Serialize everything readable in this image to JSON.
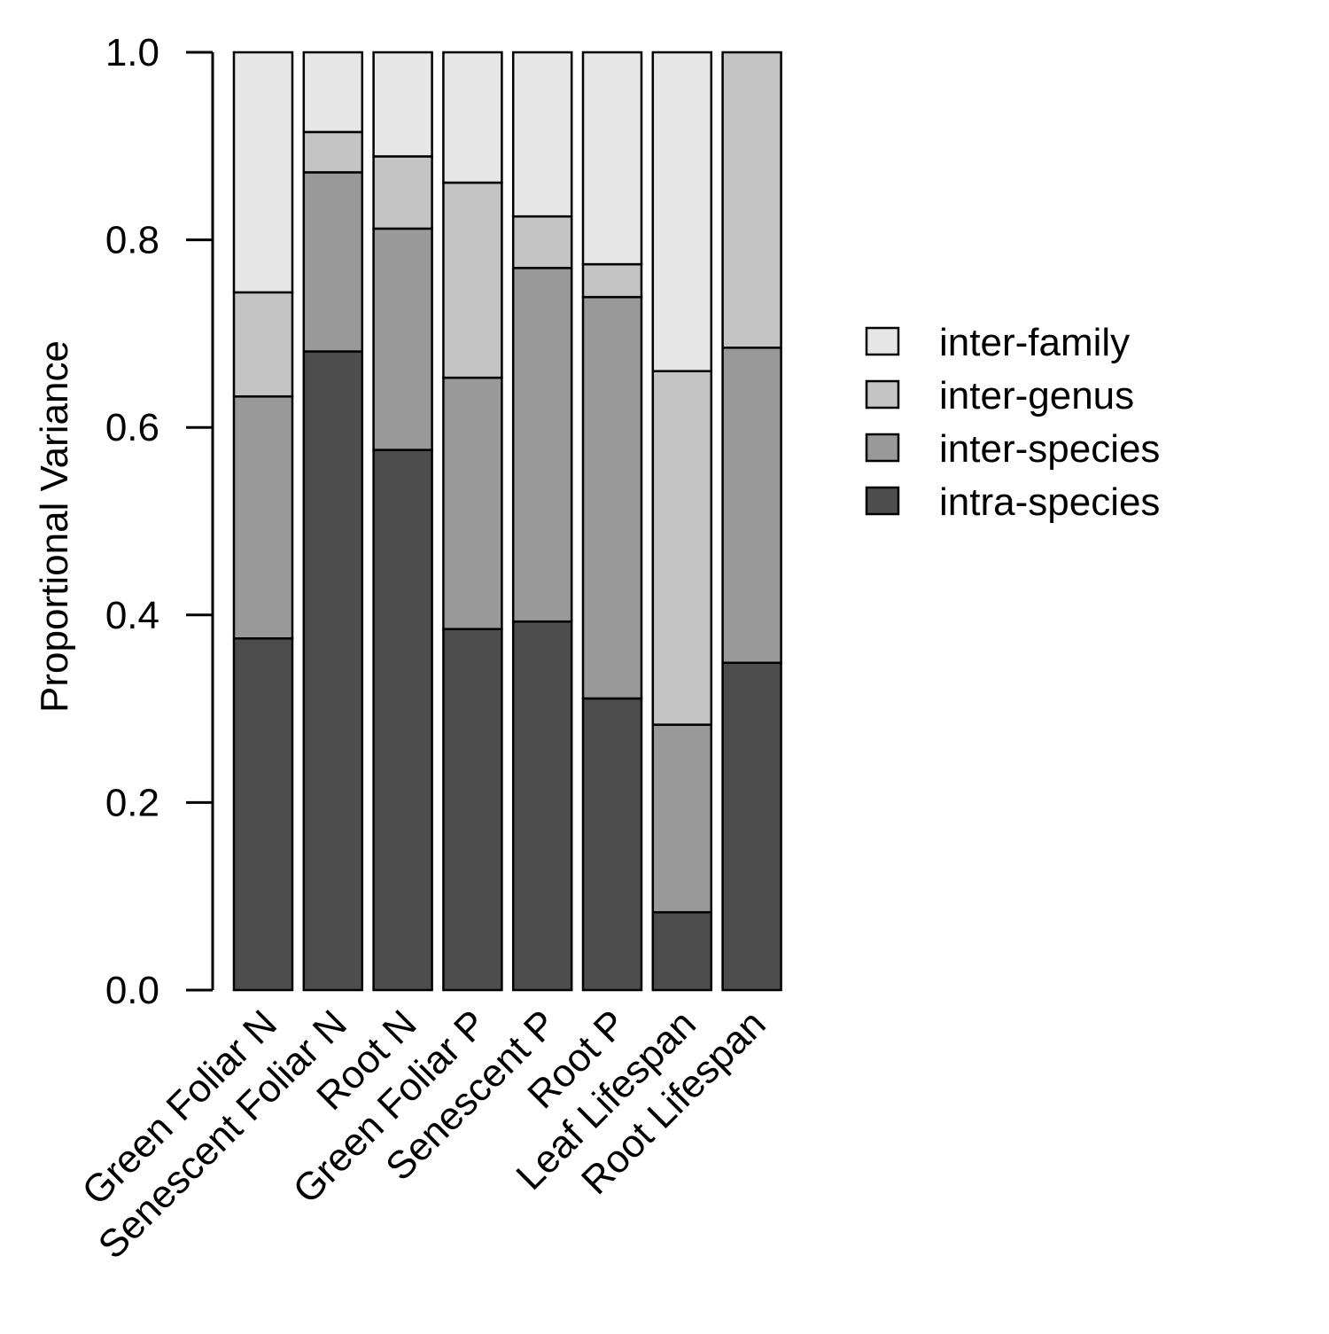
{
  "chart_data": {
    "type": "bar",
    "stacked": true,
    "title": "",
    "xlabel": "",
    "ylabel": "Proportional Variance",
    "ylim": [
      0,
      1
    ],
    "yticks": [
      "0.0",
      "0.2",
      "0.4",
      "0.6",
      "0.8",
      "1.0"
    ],
    "grid": false,
    "legend_position": "right",
    "categories": [
      "Green Foliar N",
      "Senescent Foliar N",
      "Root N",
      "Green Foliar P",
      "Senescent P",
      "Root P",
      "Leaf Lifespan",
      "Root Lifespan"
    ],
    "series": [
      {
        "name": "intra-species",
        "color": "#4d4d4d",
        "values": [
          0.375,
          0.681,
          0.576,
          0.385,
          0.393,
          0.311,
          0.083,
          0.349
        ]
      },
      {
        "name": "inter-species",
        "color": "#999999",
        "values": [
          0.258,
          0.191,
          0.236,
          0.268,
          0.377,
          0.428,
          0.2,
          0.336
        ]
      },
      {
        "name": "inter-genus",
        "color": "#c4c4c4",
        "values": [
          0.111,
          0.043,
          0.077,
          0.208,
          0.055,
          0.035,
          0.377,
          0.315
        ]
      },
      {
        "name": "inter-family",
        "color": "#e6e6e6",
        "values": [
          0.256,
          0.085,
          0.111,
          0.139,
          0.175,
          0.226,
          0.34,
          0.0
        ]
      }
    ],
    "legend_order": [
      "inter-family",
      "inter-genus",
      "inter-species",
      "intra-species"
    ]
  }
}
